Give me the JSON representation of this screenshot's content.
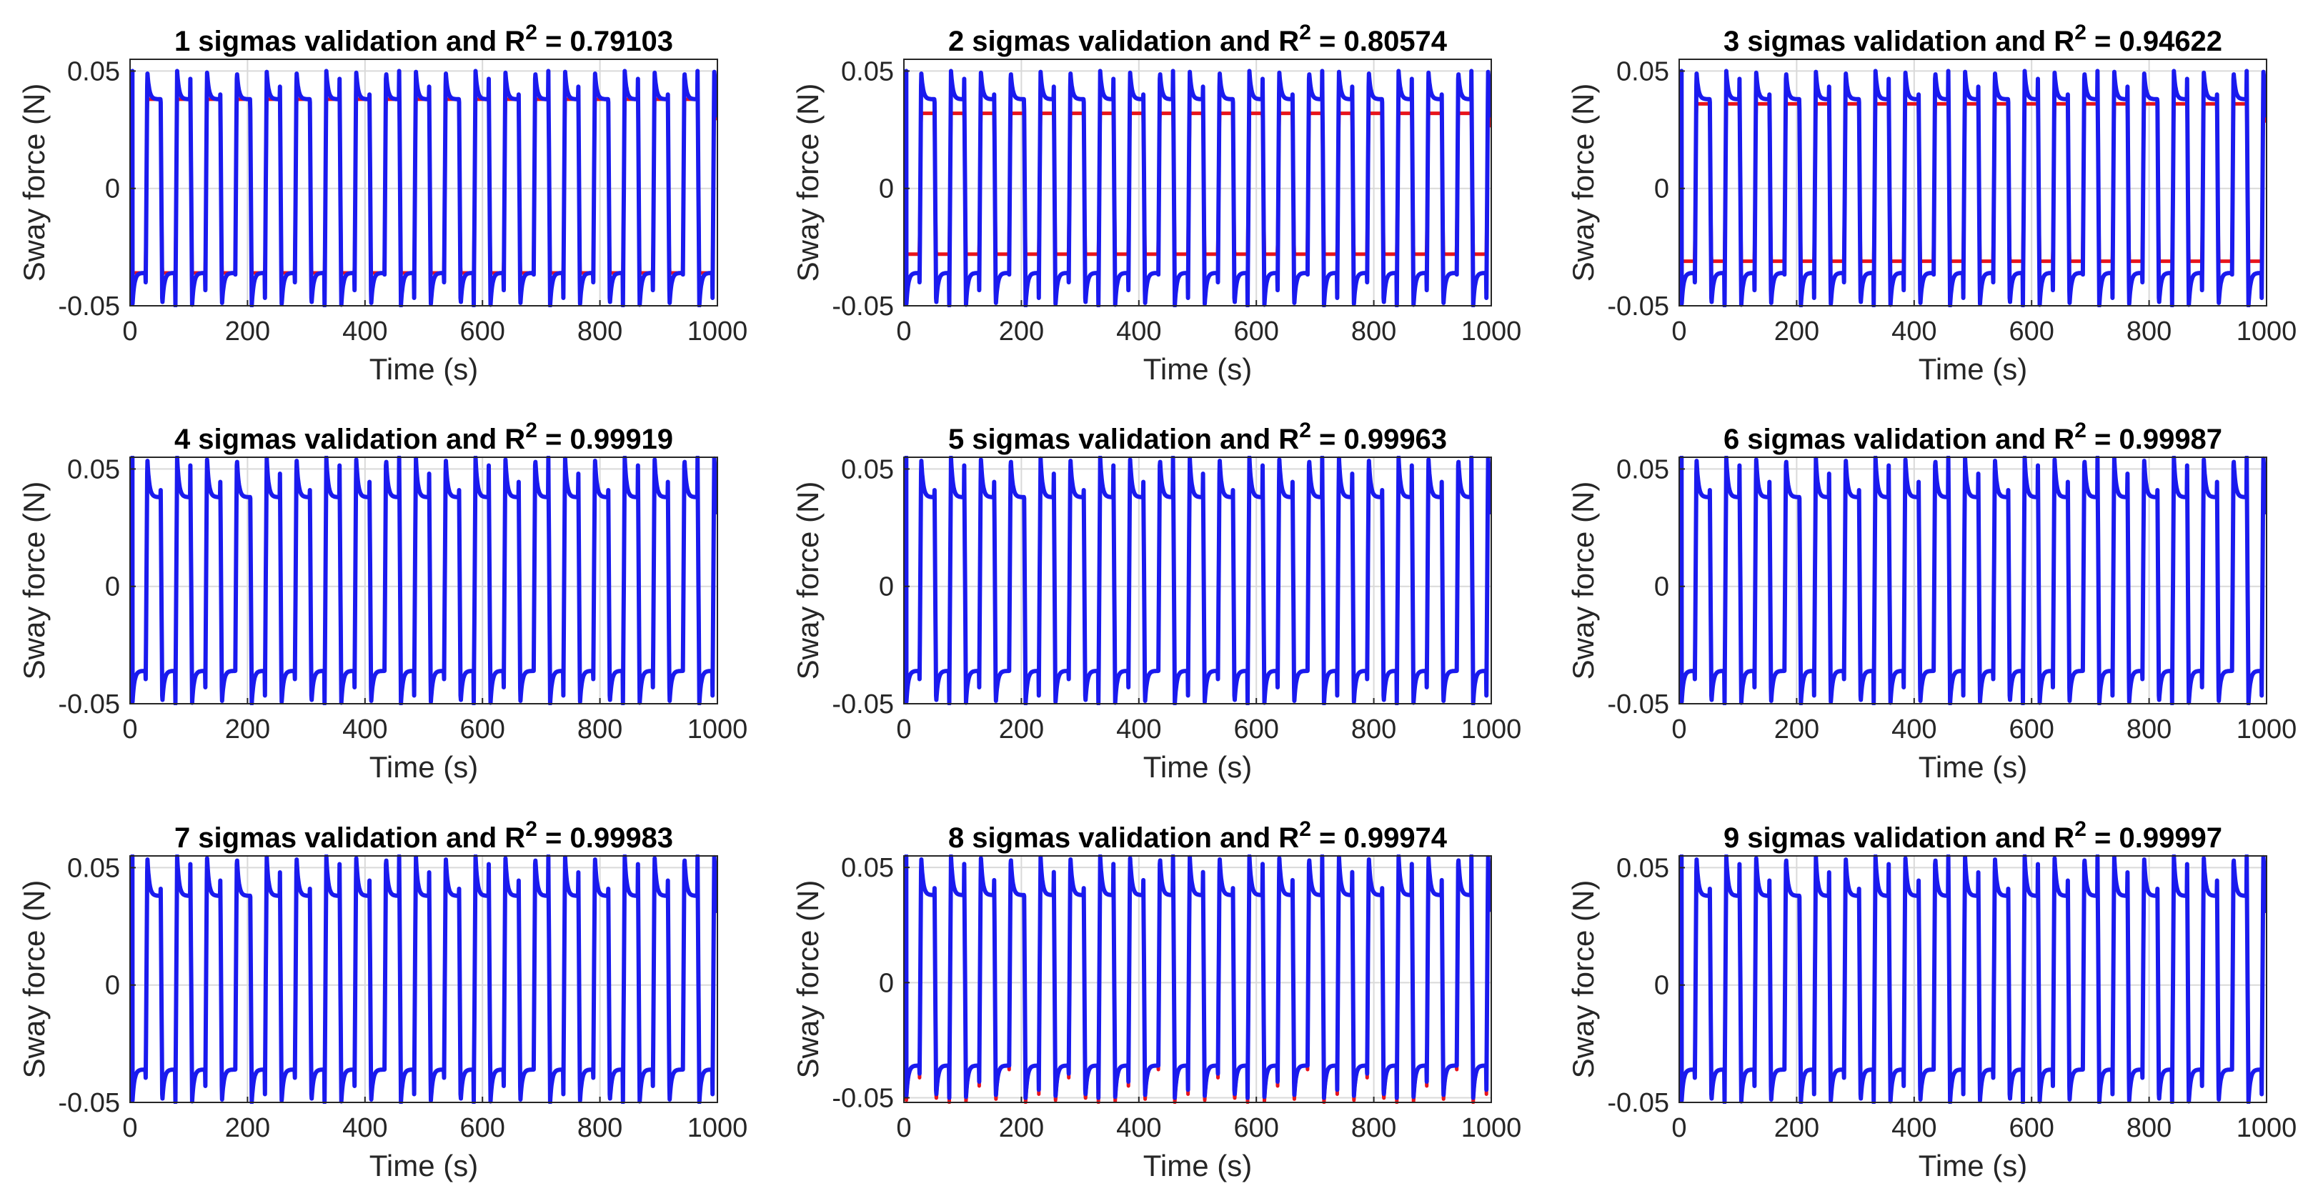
{
  "figure": {
    "description_free": true,
    "series_colors": {
      "measured": "#e8141c",
      "predicted": "#1a1aee"
    },
    "grid_color": "#d9d9d9",
    "axis_color": "#262626"
  },
  "chart_data": [
    {
      "type": "line",
      "title_prefix": "1 sigmas validation and R",
      "title_sup": "2",
      "title_suffix": " = 0.79103",
      "xlabel": "Time (s)",
      "ylabel": "Sway force (N)",
      "xlim": [
        0,
        1000
      ],
      "ylim": [
        -0.05,
        0.055
      ],
      "xticks": [
        0,
        200,
        400,
        600,
        800,
        1000
      ],
      "xtick_labels": [
        "0",
        "200",
        "400",
        "600",
        "800",
        "1000"
      ],
      "yticks": [
        -0.05,
        0,
        0.05
      ],
      "ytick_labels": [
        "-0.05",
        "0",
        "0.05"
      ],
      "series": [
        {
          "name": "measured",
          "color": "#e8141c",
          "period_s": 50.8,
          "plateau_high": 0.038,
          "plateau_low": -0.036,
          "peak_high": 0.038,
          "peak_low": -0.036
        },
        {
          "name": "predicted",
          "color": "#1a1aee",
          "period_s": 50.8,
          "plateau_high": 0.038,
          "plateau_low": -0.036,
          "peak_high": 0.05,
          "peak_low": -0.05
        }
      ]
    },
    {
      "type": "line",
      "title_prefix": "2 sigmas validation and R",
      "title_sup": "2",
      "title_suffix": " = 0.80574",
      "xlabel": "Time (s)",
      "ylabel": "Sway force (N)",
      "xlim": [
        0,
        1000
      ],
      "ylim": [
        -0.05,
        0.055
      ],
      "xticks": [
        0,
        200,
        400,
        600,
        800,
        1000
      ],
      "xtick_labels": [
        "0",
        "200",
        "400",
        "600",
        "800",
        "1000"
      ],
      "yticks": [
        -0.05,
        0,
        0.05
      ],
      "ytick_labels": [
        "-0.05",
        "0",
        "0.05"
      ],
      "series": [
        {
          "name": "measured",
          "color": "#e8141c",
          "period_s": 50.8,
          "plateau_high": 0.032,
          "plateau_low": -0.028,
          "peak_high": 0.032,
          "peak_low": -0.028
        },
        {
          "name": "predicted",
          "color": "#1a1aee",
          "period_s": 50.8,
          "plateau_high": 0.038,
          "plateau_low": -0.036,
          "peak_high": 0.05,
          "peak_low": -0.05
        }
      ]
    },
    {
      "type": "line",
      "title_prefix": "3 sigmas validation and R",
      "title_sup": "2",
      "title_suffix": " = 0.94622",
      "xlabel": "Time (s)",
      "ylabel": "Sway force (N)",
      "xlim": [
        0,
        1000
      ],
      "ylim": [
        -0.05,
        0.055
      ],
      "xticks": [
        0,
        200,
        400,
        600,
        800,
        1000
      ],
      "xtick_labels": [
        "0",
        "200",
        "400",
        "600",
        "800",
        "1000"
      ],
      "yticks": [
        -0.05,
        0,
        0.05
      ],
      "ytick_labels": [
        "-0.05",
        "0",
        "0.05"
      ],
      "series": [
        {
          "name": "measured",
          "color": "#e8141c",
          "period_s": 50.8,
          "plateau_high": 0.036,
          "plateau_low": -0.031,
          "peak_high": 0.036,
          "peak_low": -0.031
        },
        {
          "name": "predicted",
          "color": "#1a1aee",
          "period_s": 50.8,
          "plateau_high": 0.038,
          "plateau_low": -0.036,
          "peak_high": 0.05,
          "peak_low": -0.05
        }
      ]
    },
    {
      "type": "line",
      "title_prefix": "4 sigmas validation and R",
      "title_sup": "2",
      "title_suffix": " = 0.99919",
      "xlabel": "Time (s)",
      "ylabel": "Sway force (N)",
      "xlim": [
        0,
        1000
      ],
      "ylim": [
        -0.05,
        0.055
      ],
      "xticks": [
        0,
        200,
        400,
        600,
        800,
        1000
      ],
      "xtick_labels": [
        "0",
        "200",
        "400",
        "600",
        "800",
        "1000"
      ],
      "yticks": [
        -0.05,
        0,
        0.05
      ],
      "ytick_labels": [
        "-0.05",
        "0",
        "0.05"
      ],
      "series": [
        {
          "name": "measured",
          "color": "#e8141c",
          "period_s": 50.8,
          "plateau_high": 0.038,
          "plateau_low": -0.036,
          "peak_high": 0.055,
          "peak_low": -0.05
        },
        {
          "name": "predicted",
          "color": "#1a1aee",
          "period_s": 50.8,
          "plateau_high": 0.038,
          "plateau_low": -0.036,
          "peak_high": 0.055,
          "peak_low": -0.05
        }
      ]
    },
    {
      "type": "line",
      "title_prefix": "5 sigmas validation and R",
      "title_sup": "2",
      "title_suffix": " = 0.99963",
      "xlabel": "Time (s)",
      "ylabel": "Sway force (N)",
      "xlim": [
        0,
        1000
      ],
      "ylim": [
        -0.05,
        0.055
      ],
      "xticks": [
        0,
        200,
        400,
        600,
        800,
        1000
      ],
      "xtick_labels": [
        "0",
        "200",
        "400",
        "600",
        "800",
        "1000"
      ],
      "yticks": [
        -0.05,
        0,
        0.05
      ],
      "ytick_labels": [
        "-0.05",
        "0",
        "0.05"
      ],
      "series": [
        {
          "name": "measured",
          "color": "#e8141c",
          "period_s": 50.8,
          "plateau_high": 0.038,
          "plateau_low": -0.036,
          "peak_high": 0.055,
          "peak_low": -0.05
        },
        {
          "name": "predicted",
          "color": "#1a1aee",
          "period_s": 50.8,
          "plateau_high": 0.038,
          "plateau_low": -0.036,
          "peak_high": 0.055,
          "peak_low": -0.05
        }
      ]
    },
    {
      "type": "line",
      "title_prefix": "6 sigmas validation and R",
      "title_sup": "2",
      "title_suffix": " = 0.99987",
      "xlabel": "Time (s)",
      "ylabel": "Sway force (N)",
      "xlim": [
        0,
        1000
      ],
      "ylim": [
        -0.05,
        0.055
      ],
      "xticks": [
        0,
        200,
        400,
        600,
        800,
        1000
      ],
      "xtick_labels": [
        "0",
        "200",
        "400",
        "600",
        "800",
        "1000"
      ],
      "yticks": [
        -0.05,
        0,
        0.05
      ],
      "ytick_labels": [
        "-0.05",
        "0",
        "0.05"
      ],
      "series": [
        {
          "name": "measured",
          "color": "#e8141c",
          "period_s": 50.8,
          "plateau_high": 0.038,
          "plateau_low": -0.036,
          "peak_high": 0.055,
          "peak_low": -0.05
        },
        {
          "name": "predicted",
          "color": "#1a1aee",
          "period_s": 50.8,
          "plateau_high": 0.038,
          "plateau_low": -0.036,
          "peak_high": 0.055,
          "peak_low": -0.05
        }
      ]
    },
    {
      "type": "line",
      "title_prefix": "7 sigmas validation and R",
      "title_sup": "2",
      "title_suffix": " = 0.99983",
      "xlabel": "Time (s)",
      "ylabel": "Sway force (N)",
      "xlim": [
        0,
        1000
      ],
      "ylim": [
        -0.05,
        0.055
      ],
      "xticks": [
        0,
        200,
        400,
        600,
        800,
        1000
      ],
      "xtick_labels": [
        "0",
        "200",
        "400",
        "600",
        "800",
        "1000"
      ],
      "yticks": [
        -0.05,
        0,
        0.05
      ],
      "ytick_labels": [
        "-0.05",
        "0",
        "0.05"
      ],
      "series": [
        {
          "name": "measured",
          "color": "#e8141c",
          "period_s": 50.8,
          "plateau_high": 0.038,
          "plateau_low": -0.036,
          "peak_high": 0.055,
          "peak_low": -0.05
        },
        {
          "name": "predicted",
          "color": "#1a1aee",
          "period_s": 50.8,
          "plateau_high": 0.038,
          "plateau_low": -0.036,
          "peak_high": 0.055,
          "peak_low": -0.05
        }
      ]
    },
    {
      "type": "line",
      "title_prefix": "8 sigmas validation and R",
      "title_sup": "2",
      "title_suffix": " = 0.99974",
      "xlabel": "Time (s)",
      "ylabel": "Sway force (N)",
      "xlim": [
        0,
        1000
      ],
      "ylim": [
        -0.052,
        0.055
      ],
      "xticks": [
        0,
        200,
        400,
        600,
        800,
        1000
      ],
      "xtick_labels": [
        "0",
        "200",
        "400",
        "600",
        "800",
        "1000"
      ],
      "yticks": [
        -0.05,
        0,
        0.05
      ],
      "ytick_labels": [
        "-0.05",
        "0",
        "0.05"
      ],
      "series": [
        {
          "name": "measured",
          "color": "#e8141c",
          "period_s": 50.8,
          "plateau_high": 0.038,
          "plateau_low": -0.036,
          "peak_high": 0.055,
          "peak_low": -0.052
        },
        {
          "name": "predicted",
          "color": "#1a1aee",
          "period_s": 50.8,
          "plateau_high": 0.038,
          "plateau_low": -0.036,
          "peak_high": 0.055,
          "peak_low": -0.05
        }
      ]
    },
    {
      "type": "line",
      "title_prefix": "9 sigmas validation and R",
      "title_sup": "2",
      "title_suffix": " = 0.99997",
      "xlabel": "Time (s)",
      "ylabel": "Sway force (N)",
      "xlim": [
        0,
        1000
      ],
      "ylim": [
        -0.05,
        0.055
      ],
      "xticks": [
        0,
        200,
        400,
        600,
        800,
        1000
      ],
      "xtick_labels": [
        "0",
        "200",
        "400",
        "600",
        "800",
        "1000"
      ],
      "yticks": [
        -0.05,
        0,
        0.05
      ],
      "ytick_labels": [
        "-0.05",
        "0",
        "0.05"
      ],
      "series": [
        {
          "name": "measured",
          "color": "#e8141c",
          "period_s": 50.8,
          "plateau_high": 0.038,
          "plateau_low": -0.036,
          "peak_high": 0.055,
          "peak_low": -0.05
        },
        {
          "name": "predicted",
          "color": "#1a1aee",
          "period_s": 50.8,
          "plateau_high": 0.038,
          "plateau_low": -0.036,
          "peak_high": 0.055,
          "peak_low": -0.05
        }
      ]
    }
  ]
}
